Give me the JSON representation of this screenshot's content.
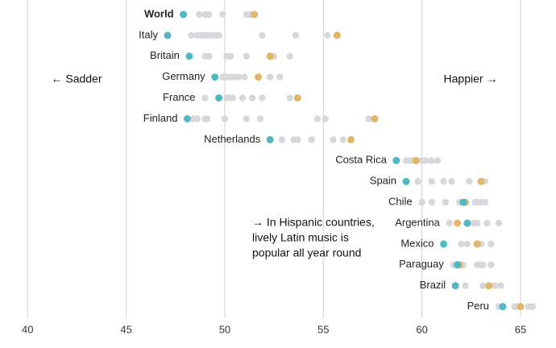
{
  "chart_data": {
    "type": "dot",
    "categories": [
      "World",
      "Italy",
      "Britain",
      "Germany",
      "France",
      "Finland",
      "Netherlands",
      "Costa Rica",
      "Spain",
      "Chile",
      "Argentina",
      "Mexico",
      "Paraguay",
      "Brazil",
      "Peru"
    ],
    "series": [
      {
        "color": "#4fb8c4",
        "values": [
          47.9,
          47.1,
          48.2,
          49.5,
          49.7,
          48.1,
          52.3,
          58.7,
          59.2,
          62.1,
          62.3,
          61.1,
          61.8,
          61.7,
          64.1
        ]
      },
      {
        "color": "#e3b566",
        "values": [
          51.5,
          55.7,
          52.3,
          51.7,
          53.7,
          57.6,
          56.4,
          59.7,
          63.0,
          62.2,
          61.8,
          62.8,
          61.9,
          63.4,
          65.0
        ]
      }
    ],
    "others": {
      "color": "#d6d8db",
      "values": [
        [
          48.7,
          49.0,
          49.2,
          49.9,
          51.1,
          51.3
        ],
        [
          48.3,
          48.6,
          48.8,
          49.0,
          49.2,
          49.4,
          49.6,
          49.7,
          51.9,
          53.6,
          55.2
        ],
        [
          49.0,
          49.2,
          50.1,
          50.3,
          51.1,
          52.5,
          53.3
        ],
        [
          49.9,
          50.1,
          50.3,
          50.5,
          50.7,
          51.0,
          52.3,
          52.8
        ],
        [
          49.0,
          50.1,
          50.2,
          50.4,
          50.9,
          51.4,
          51.9,
          53.3
        ],
        [
          48.4,
          48.6,
          49.0,
          49.1,
          50.0,
          51.1,
          51.8,
          54.7,
          55.1,
          57.3
        ],
        [
          52.9,
          53.5,
          53.7,
          54.4,
          55.5,
          56.0
        ],
        [
          59.2,
          59.4,
          59.5,
          60.0,
          60.2,
          60.5,
          60.8
        ],
        [
          59.8,
          60.5,
          61.1,
          61.5,
          62.4,
          63.2
        ],
        [
          60.0,
          60.5,
          61.2,
          61.9,
          62.7,
          62.8,
          63.0,
          63.2
        ],
        [
          61.4,
          62.6,
          62.8,
          63.3,
          63.9
        ],
        [
          62.0,
          62.3,
          63.0,
          63.5
        ],
        [
          61.6,
          62.1,
          62.8,
          63.0,
          63.1,
          63.5
        ],
        [
          62.2,
          63.1,
          63.7,
          64.0
        ],
        [
          63.9,
          64.7,
          64.8,
          65.4,
          65.6
        ]
      ]
    },
    "xlim": [
      38.6,
      66.8
    ],
    "xticks": [
      40,
      45,
      50,
      55,
      60,
      65
    ],
    "grid": true,
    "annotations": {
      "left": "← Sadder",
      "right": "Happier →",
      "note": [
        "→ In Hispanic countries,",
        "lively Latin music is",
        "popular all year round"
      ]
    }
  }
}
